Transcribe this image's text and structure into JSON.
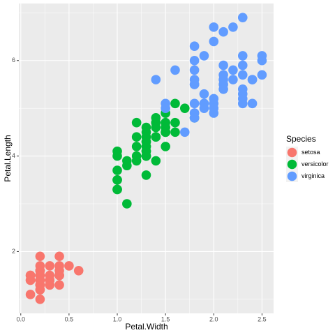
{
  "chart_data": {
    "type": "scatter",
    "x_label": "Petal.Width",
    "y_label": "Petal.Length",
    "legend_title": "Species",
    "legend_position": "right",
    "grid": true,
    "xlim": [
      -0.02,
      2.62
    ],
    "ylim": [
      0.705,
      7.195
    ],
    "xticks": [
      {
        "value": 0,
        "label": "0.0"
      },
      0.5,
      {
        "value": 1,
        "label": "1.0"
      },
      1.5,
      {
        "value": 2,
        "label": "2.0"
      },
      2.5
    ],
    "yticks": [
      2,
      4,
      6
    ],
    "minor_xticks": [
      0.25,
      0.75,
      1.25,
      1.75,
      2.25
    ],
    "minor_yticks": [
      1,
      3,
      5,
      7
    ],
    "series": [
      {
        "name": "setosa",
        "color": "#F8766D",
        "x": [
          0.2,
          0.2,
          0.2,
          0.2,
          0.2,
          0.4,
          0.3,
          0.2,
          0.2,
          0.1,
          0.2,
          0.2,
          0.1,
          0.1,
          0.2,
          0.4,
          0.4,
          0.3,
          0.3,
          0.3,
          0.2,
          0.4,
          0.2,
          0.5,
          0.2,
          0.2,
          0.4,
          0.2,
          0.2,
          0.2,
          0.2,
          0.4,
          0.1,
          0.2,
          0.2,
          0.2,
          0.2,
          0.1,
          0.2,
          0.2,
          0.3,
          0.3,
          0.2,
          0.6,
          0.4,
          0.3,
          0.2,
          0.2,
          0.2,
          0.2
        ],
        "values": [
          1.4,
          1.4,
          1.3,
          1.5,
          1.4,
          1.7,
          1.4,
          1.5,
          1.4,
          1.5,
          1.5,
          1.6,
          1.4,
          1.1,
          1.2,
          1.5,
          1.3,
          1.4,
          1.7,
          1.5,
          1.7,
          1.5,
          1.0,
          1.7,
          1.9,
          1.6,
          1.6,
          1.5,
          1.4,
          1.6,
          1.6,
          1.5,
          1.5,
          1.4,
          1.5,
          1.2,
          1.3,
          1.4,
          1.3,
          1.5,
          1.3,
          1.3,
          1.3,
          1.6,
          1.9,
          1.4,
          1.6,
          1.4,
          1.5,
          1.4
        ]
      },
      {
        "name": "versicolor",
        "color": "#00BA38",
        "x": [
          1.4,
          1.5,
          1.5,
          1.3,
          1.5,
          1.3,
          1.6,
          1.0,
          1.3,
          1.4,
          1.0,
          1.5,
          1.0,
          1.4,
          1.3,
          1.4,
          1.5,
          1.0,
          1.5,
          1.1,
          1.8,
          1.3,
          1.5,
          1.2,
          1.3,
          1.4,
          1.4,
          1.7,
          1.5,
          1.0,
          1.1,
          1.0,
          1.2,
          1.6,
          1.5,
          1.6,
          1.5,
          1.3,
          1.3,
          1.3,
          1.2,
          1.4,
          1.2,
          1.0,
          1.3,
          1.2,
          1.3,
          1.3,
          1.1,
          1.3
        ],
        "values": [
          4.7,
          4.5,
          4.9,
          4.0,
          4.6,
          4.5,
          4.7,
          3.3,
          4.6,
          3.9,
          3.5,
          4.2,
          4.0,
          4.7,
          3.6,
          4.4,
          4.5,
          4.1,
          4.5,
          3.9,
          4.8,
          4.0,
          4.9,
          4.7,
          4.3,
          4.4,
          4.8,
          5.0,
          4.5,
          3.5,
          3.8,
          3.7,
          3.9,
          5.1,
          4.5,
          4.5,
          4.7,
          4.4,
          4.1,
          4.0,
          4.4,
          4.6,
          4.0,
          3.3,
          4.2,
          4.2,
          4.2,
          4.3,
          3.0,
          4.1
        ]
      },
      {
        "name": "virginica",
        "color": "#619CFF",
        "x": [
          2.5,
          1.9,
          2.1,
          1.8,
          2.2,
          2.1,
          1.7,
          1.8,
          1.8,
          2.5,
          2.0,
          1.9,
          2.1,
          2.0,
          2.4,
          2.3,
          1.8,
          2.2,
          2.3,
          1.5,
          2.3,
          2.0,
          2.0,
          1.8,
          2.1,
          1.8,
          1.8,
          1.8,
          2.1,
          1.6,
          1.9,
          2.0,
          2.2,
          1.5,
          1.4,
          2.3,
          2.4,
          1.8,
          1.8,
          2.1,
          2.4,
          2.3,
          1.9,
          2.3,
          2.5,
          2.3,
          1.9,
          2.0,
          2.3,
          1.8
        ],
        "values": [
          6.0,
          5.1,
          5.9,
          5.6,
          5.8,
          6.6,
          4.5,
          6.3,
          5.8,
          6.1,
          5.1,
          5.3,
          5.5,
          5.0,
          5.1,
          5.3,
          5.5,
          6.7,
          6.9,
          5.0,
          5.7,
          4.9,
          6.7,
          4.9,
          5.7,
          6.0,
          4.8,
          4.9,
          5.6,
          5.8,
          6.1,
          6.4,
          5.6,
          5.1,
          5.6,
          6.1,
          5.6,
          5.5,
          4.8,
          5.4,
          5.6,
          5.1,
          5.1,
          5.9,
          5.7,
          5.2,
          5.0,
          5.2,
          5.4,
          5.1
        ]
      }
    ]
  }
}
